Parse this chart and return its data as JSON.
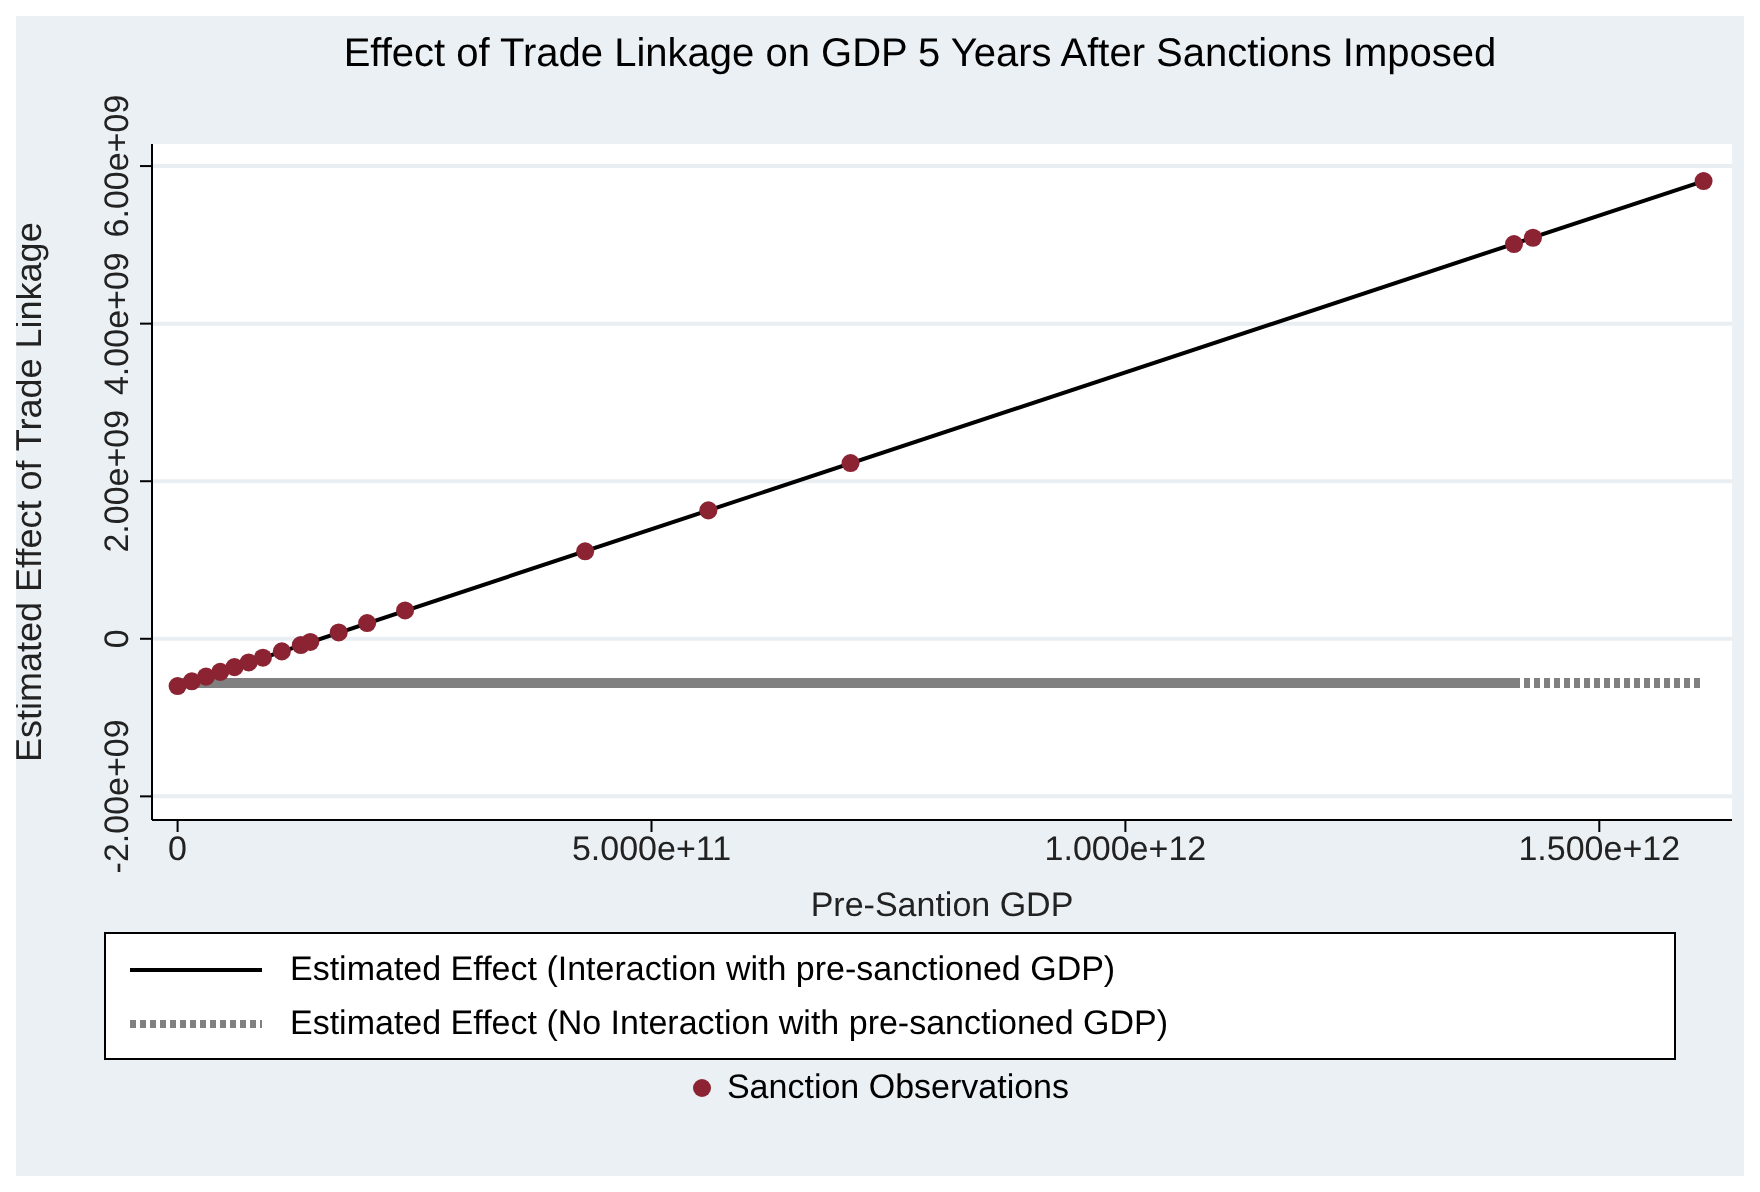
{
  "chart_data": {
    "type": "line",
    "title": "Effect of Trade Linkage on GDP 5 Years After Sanctions Imposed",
    "xlabel": "Pre-Santion GDP",
    "ylabel": "Estimated Effect of Trade Linkage",
    "xlim": [
      -27000000000,
      1640000000000
    ],
    "ylim": [
      -2300000000,
      6280000000
    ],
    "xticks": [
      0,
      {
        "value": 500000000000,
        "label": "5.000e+11"
      },
      {
        "value": 1000000000000,
        "label": "1.000e+12"
      },
      {
        "value": 1500000000000,
        "label": "1.500e+12"
      }
    ],
    "yticks": [
      {
        "value": -2000000000,
        "label": "-2.00e+09"
      },
      0,
      {
        "value": 2000000000,
        "label": "2.00e+09"
      },
      {
        "value": 4000000000,
        "label": "4.00e+09"
      },
      {
        "value": 6000000000,
        "label": "6.00e+09"
      }
    ],
    "grid": "y",
    "legend": "bottom",
    "series": [
      {
        "color": "#808080",
        "line_style": "solid",
        "x": [
          0,
          1410000000000
        ],
        "values": [
          -560000000,
          -560000000
        ]
      },
      {
        "name": "Estimated Effect (Interaction with pre-sanctioned GDP)",
        "color": "#000000",
        "line_style": "solid",
        "x": [
          0,
          1610000000000
        ],
        "values": [
          -600000000,
          5810000000
        ]
      },
      {
        "name": "Estimated Effect (No Interaction with pre-sanctioned GDP)",
        "color": "#808080",
        "line_style": "dotted",
        "x": [
          1410000000000,
          1610000000000
        ],
        "values": [
          -560000000,
          -560000000
        ]
      },
      {
        "type": "scatter",
        "name": "Sanction Observations",
        "color": "#8b2332",
        "marker": "circle",
        "x": [
          0,
          15000000000,
          30000000000,
          45000000000,
          60000000000,
          75000000000,
          90000000000,
          110000000000,
          130000000000,
          140000000000,
          170000000000,
          200000000000,
          240000000000,
          430000000000,
          560000000000,
          710000000000,
          1410000000000,
          1430000000000,
          1610000000000
        ],
        "values": [
          -600000000,
          -540000000,
          -480000000,
          -420000000,
          -360000000,
          -300000000,
          -240000000,
          -160000000,
          -80000000,
          -40000000,
          80000000,
          200000000,
          360000000,
          1110000000,
          1630000000,
          2230000000,
          5010000000,
          5090000000,
          5810000000
        ]
      }
    ]
  }
}
